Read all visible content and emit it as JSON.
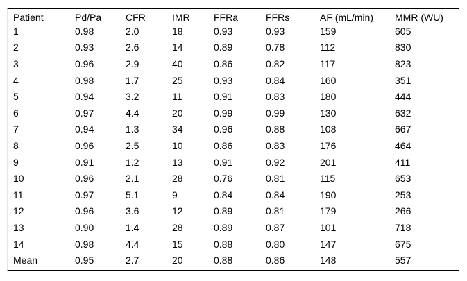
{
  "page": {
    "background": "#ffffff",
    "text_color": "#000000",
    "rule_color": "#000000",
    "edge_color": "#e4e4e4"
  },
  "table": {
    "columns": [
      "Patient",
      "Pd/Pa",
      "CFR",
      "IMR",
      "FFRa",
      "FFRs",
      "AF (mL/min)",
      "MMR (WU)"
    ],
    "rows": [
      [
        "1",
        "0.98",
        "2.0",
        "18",
        "0.93",
        "0.93",
        "159",
        "605"
      ],
      [
        "2",
        "0.93",
        "2.6",
        "14",
        "0.89",
        "0.78",
        "112",
        "830"
      ],
      [
        "3",
        "0.96",
        "2.9",
        "40",
        "0.86",
        "0.82",
        "117",
        "823"
      ],
      [
        "4",
        "0.98",
        "1.7",
        "25",
        "0.93",
        "0.84",
        "160",
        "351"
      ],
      [
        "5",
        "0.94",
        "3.2",
        "11",
        "0.91",
        "0.83",
        "180",
        "444"
      ],
      [
        "6",
        "0.97",
        "4.4",
        "20",
        "0.99",
        "0.99",
        "130",
        "632"
      ],
      [
        "7",
        "0.94",
        "1.3",
        "34",
        "0.96",
        "0.88",
        "108",
        "667"
      ],
      [
        "8",
        "0.96",
        "2.5",
        "10",
        "0.86",
        "0.83",
        "176",
        "464"
      ],
      [
        "9",
        "0.91",
        "1.2",
        "13",
        "0.91",
        "0.92",
        "201",
        "411"
      ],
      [
        "10",
        "0.96",
        "2.1",
        "28",
        "0.76",
        "0.81",
        "115",
        "653"
      ],
      [
        "11",
        "0.97",
        "5.1",
        "9",
        "0.84",
        "0.84",
        "190",
        "253"
      ],
      [
        "12",
        "0.96",
        "3.6",
        "12",
        "0.89",
        "0.81",
        "179",
        "266"
      ],
      [
        "13",
        "0.90",
        "1.4",
        "28",
        "0.89",
        "0.87",
        "101",
        "718"
      ],
      [
        "14",
        "0.98",
        "4.4",
        "15",
        "0.88",
        "0.80",
        "147",
        "675"
      ],
      [
        "Mean",
        "0.95",
        "2.7",
        "20",
        "0.88",
        "0.86",
        "148",
        "557"
      ]
    ]
  },
  "chart_data": {
    "type": "table",
    "columns": [
      "Patient",
      "Pd/Pa",
      "CFR",
      "IMR",
      "FFRa",
      "FFRs",
      "AF (mL/min)",
      "MMR (WU)"
    ],
    "rows": [
      [
        "1",
        "0.98",
        "2.0",
        "18",
        "0.93",
        "0.93",
        "159",
        "605"
      ],
      [
        "2",
        "0.93",
        "2.6",
        "14",
        "0.89",
        "0.78",
        "112",
        "830"
      ],
      [
        "3",
        "0.96",
        "2.9",
        "40",
        "0.86",
        "0.82",
        "117",
        "823"
      ],
      [
        "4",
        "0.98",
        "1.7",
        "25",
        "0.93",
        "0.84",
        "160",
        "351"
      ],
      [
        "5",
        "0.94",
        "3.2",
        "11",
        "0.91",
        "0.83",
        "180",
        "444"
      ],
      [
        "6",
        "0.97",
        "4.4",
        "20",
        "0.99",
        "0.99",
        "130",
        "632"
      ],
      [
        "7",
        "0.94",
        "1.3",
        "34",
        "0.96",
        "0.88",
        "108",
        "667"
      ],
      [
        "8",
        "0.96",
        "2.5",
        "10",
        "0.86",
        "0.83",
        "176",
        "464"
      ],
      [
        "9",
        "0.91",
        "1.2",
        "13",
        "0.91",
        "0.92",
        "201",
        "411"
      ],
      [
        "10",
        "0.96",
        "2.1",
        "28",
        "0.76",
        "0.81",
        "115",
        "653"
      ],
      [
        "11",
        "0.97",
        "5.1",
        "9",
        "0.84",
        "0.84",
        "190",
        "253"
      ],
      [
        "12",
        "0.96",
        "3.6",
        "12",
        "0.89",
        "0.81",
        "179",
        "266"
      ],
      [
        "13",
        "0.90",
        "1.4",
        "28",
        "0.89",
        "0.87",
        "101",
        "718"
      ],
      [
        "14",
        "0.98",
        "4.4",
        "15",
        "0.88",
        "0.80",
        "147",
        "675"
      ],
      [
        "Mean",
        "0.95",
        "2.7",
        "20",
        "0.88",
        "0.86",
        "148",
        "557"
      ]
    ]
  }
}
